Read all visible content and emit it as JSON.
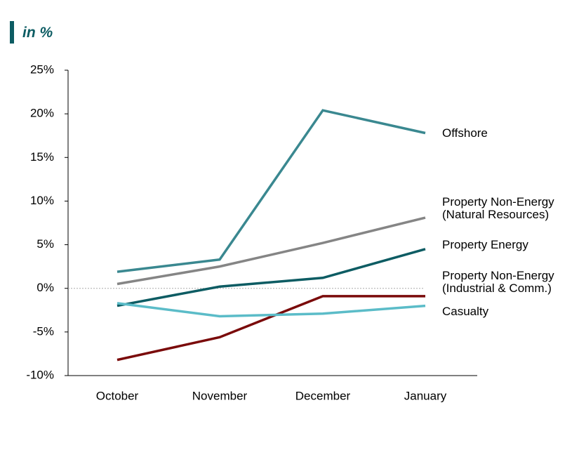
{
  "chart_data": {
    "type": "line",
    "subtitle": "in %",
    "categories": [
      "October",
      "November",
      "December",
      "January"
    ],
    "series": [
      {
        "name": "Offshore",
        "color": "#3a8890",
        "values": [
          1.9,
          3.3,
          20.4,
          17.8
        ]
      },
      {
        "name": "Property Non-Energy\n(Natural Resources)",
        "color": "#858585",
        "values": [
          0.5,
          2.5,
          5.2,
          8.1
        ]
      },
      {
        "name": "Property Energy",
        "color": "#0d5c63",
        "values": [
          -2.0,
          0.2,
          1.2,
          4.5
        ]
      },
      {
        "name": "Property Non-Energy\n(Industrial & Comm.)",
        "color": "#7a0a0a",
        "values": [
          -8.2,
          -5.6,
          -0.9,
          -0.9
        ]
      },
      {
        "name": "Casualty",
        "color": "#5bbcc8",
        "values": [
          -1.7,
          -3.2,
          -2.9,
          -2.0
        ]
      }
    ],
    "ylim": [
      -10,
      25
    ],
    "yticks": [
      {
        "value": -10,
        "label": "-10%"
      },
      {
        "value": -5,
        "label": "-5%"
      },
      {
        "value": 0,
        "label": "0%"
      },
      {
        "value": 5,
        "label": "5%"
      },
      {
        "value": 10,
        "label": "10%"
      },
      {
        "value": 15,
        "label": "15%"
      },
      {
        "value": 20,
        "label": "20%"
      },
      {
        "value": 25,
        "label": "25%"
      }
    ],
    "reference_line": 0,
    "grid": false
  }
}
